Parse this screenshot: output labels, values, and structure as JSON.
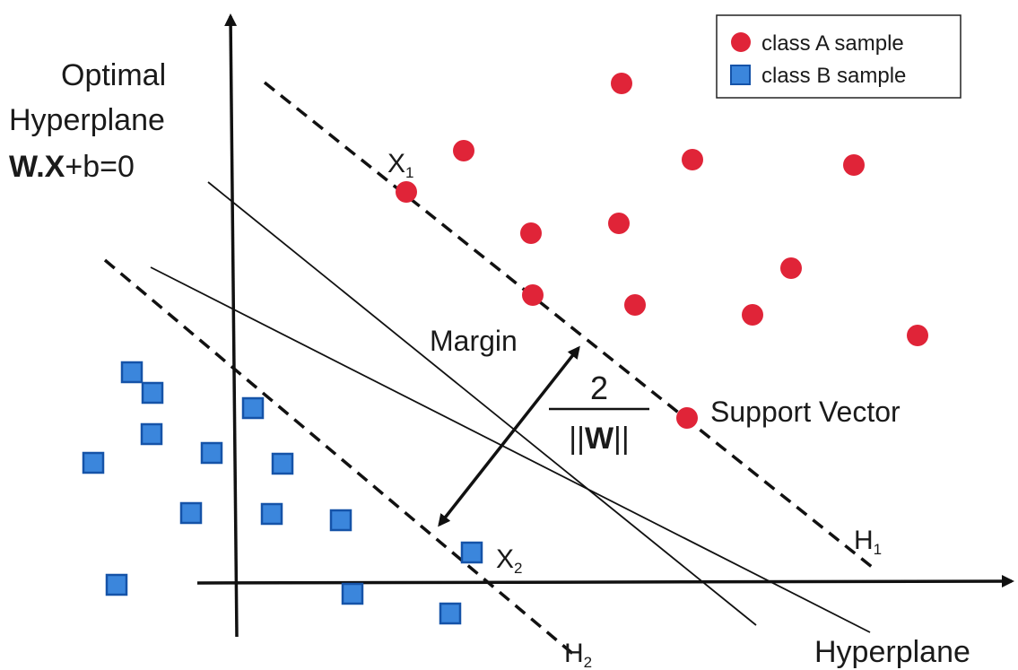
{
  "colors": {
    "class_a": "#e02438",
    "class_b": "#3b86dc",
    "class_b_border": "#1553a8",
    "ink": "#111111"
  },
  "legend": {
    "class_a_label": "class A sample",
    "class_b_label": "class B sample"
  },
  "labels": {
    "optimal_line1": "Optimal",
    "optimal_line2": "Hyperplane",
    "equation_bold": "W.X",
    "equation_rest": "+b=0",
    "x1": "X",
    "x1_sub": "1",
    "x2": "X",
    "x2_sub": "2",
    "margin": "Margin",
    "fraction_numerator": "2",
    "fraction_left": "||",
    "fraction_w": "W",
    "fraction_right": "||",
    "support_vector": "Support Vector",
    "h1": "H",
    "h1_sub": "1",
    "h2": "H",
    "h2_sub": "2",
    "hyperplane": "Hyperplane"
  },
  "icons": {
    "class_a_marker": "red-circle-icon",
    "class_b_marker": "blue-square-icon"
  }
}
